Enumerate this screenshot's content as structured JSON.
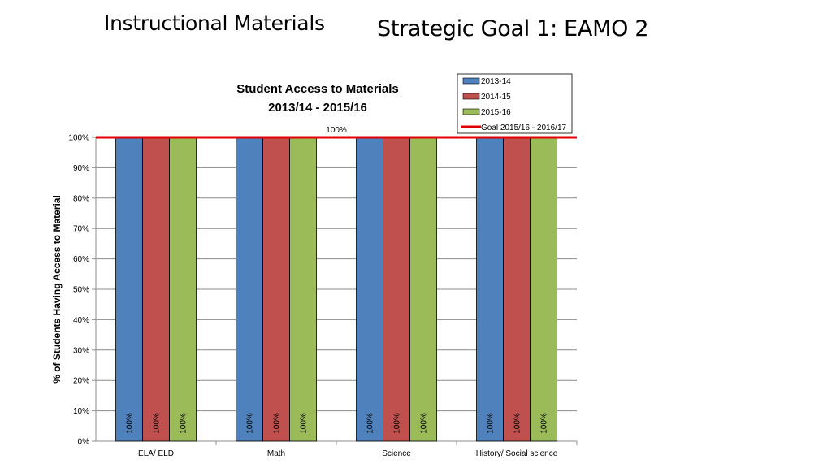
{
  "slide": {
    "title": "Instructional Materials",
    "subtitle": "Strategic Goal 1: EAMO 2"
  },
  "chart_data": {
    "type": "bar",
    "title_lines": [
      "Student Access to Materials",
      "2013/14 - 2015/16"
    ],
    "xlabel": "",
    "ylabel": "% of Students Having Access to Material",
    "categories": [
      "ELA/ ELD",
      "Math",
      "Science",
      "History/ Social science"
    ],
    "series": [
      {
        "name": "2013-14",
        "color": "#4F81BD",
        "values": [
          100,
          100,
          100,
          100
        ]
      },
      {
        "name": "2014-15",
        "color": "#C0504D",
        "values": [
          100,
          100,
          100,
          100
        ]
      },
      {
        "name": "2015-16",
        "color": "#9BBB59",
        "values": [
          100,
          100,
          100,
          100
        ]
      }
    ],
    "goal_line": {
      "name": "Goal 2015/16 - 2016/17",
      "value": 100,
      "label": "100%",
      "color": "#E00000"
    },
    "ylim": [
      0,
      100
    ],
    "yticks": [
      0,
      10,
      20,
      30,
      40,
      50,
      60,
      70,
      80,
      90,
      100
    ],
    "ytick_suffix": "%",
    "data_label_suffix": "%",
    "grid": true,
    "legend_position": "top-right"
  }
}
